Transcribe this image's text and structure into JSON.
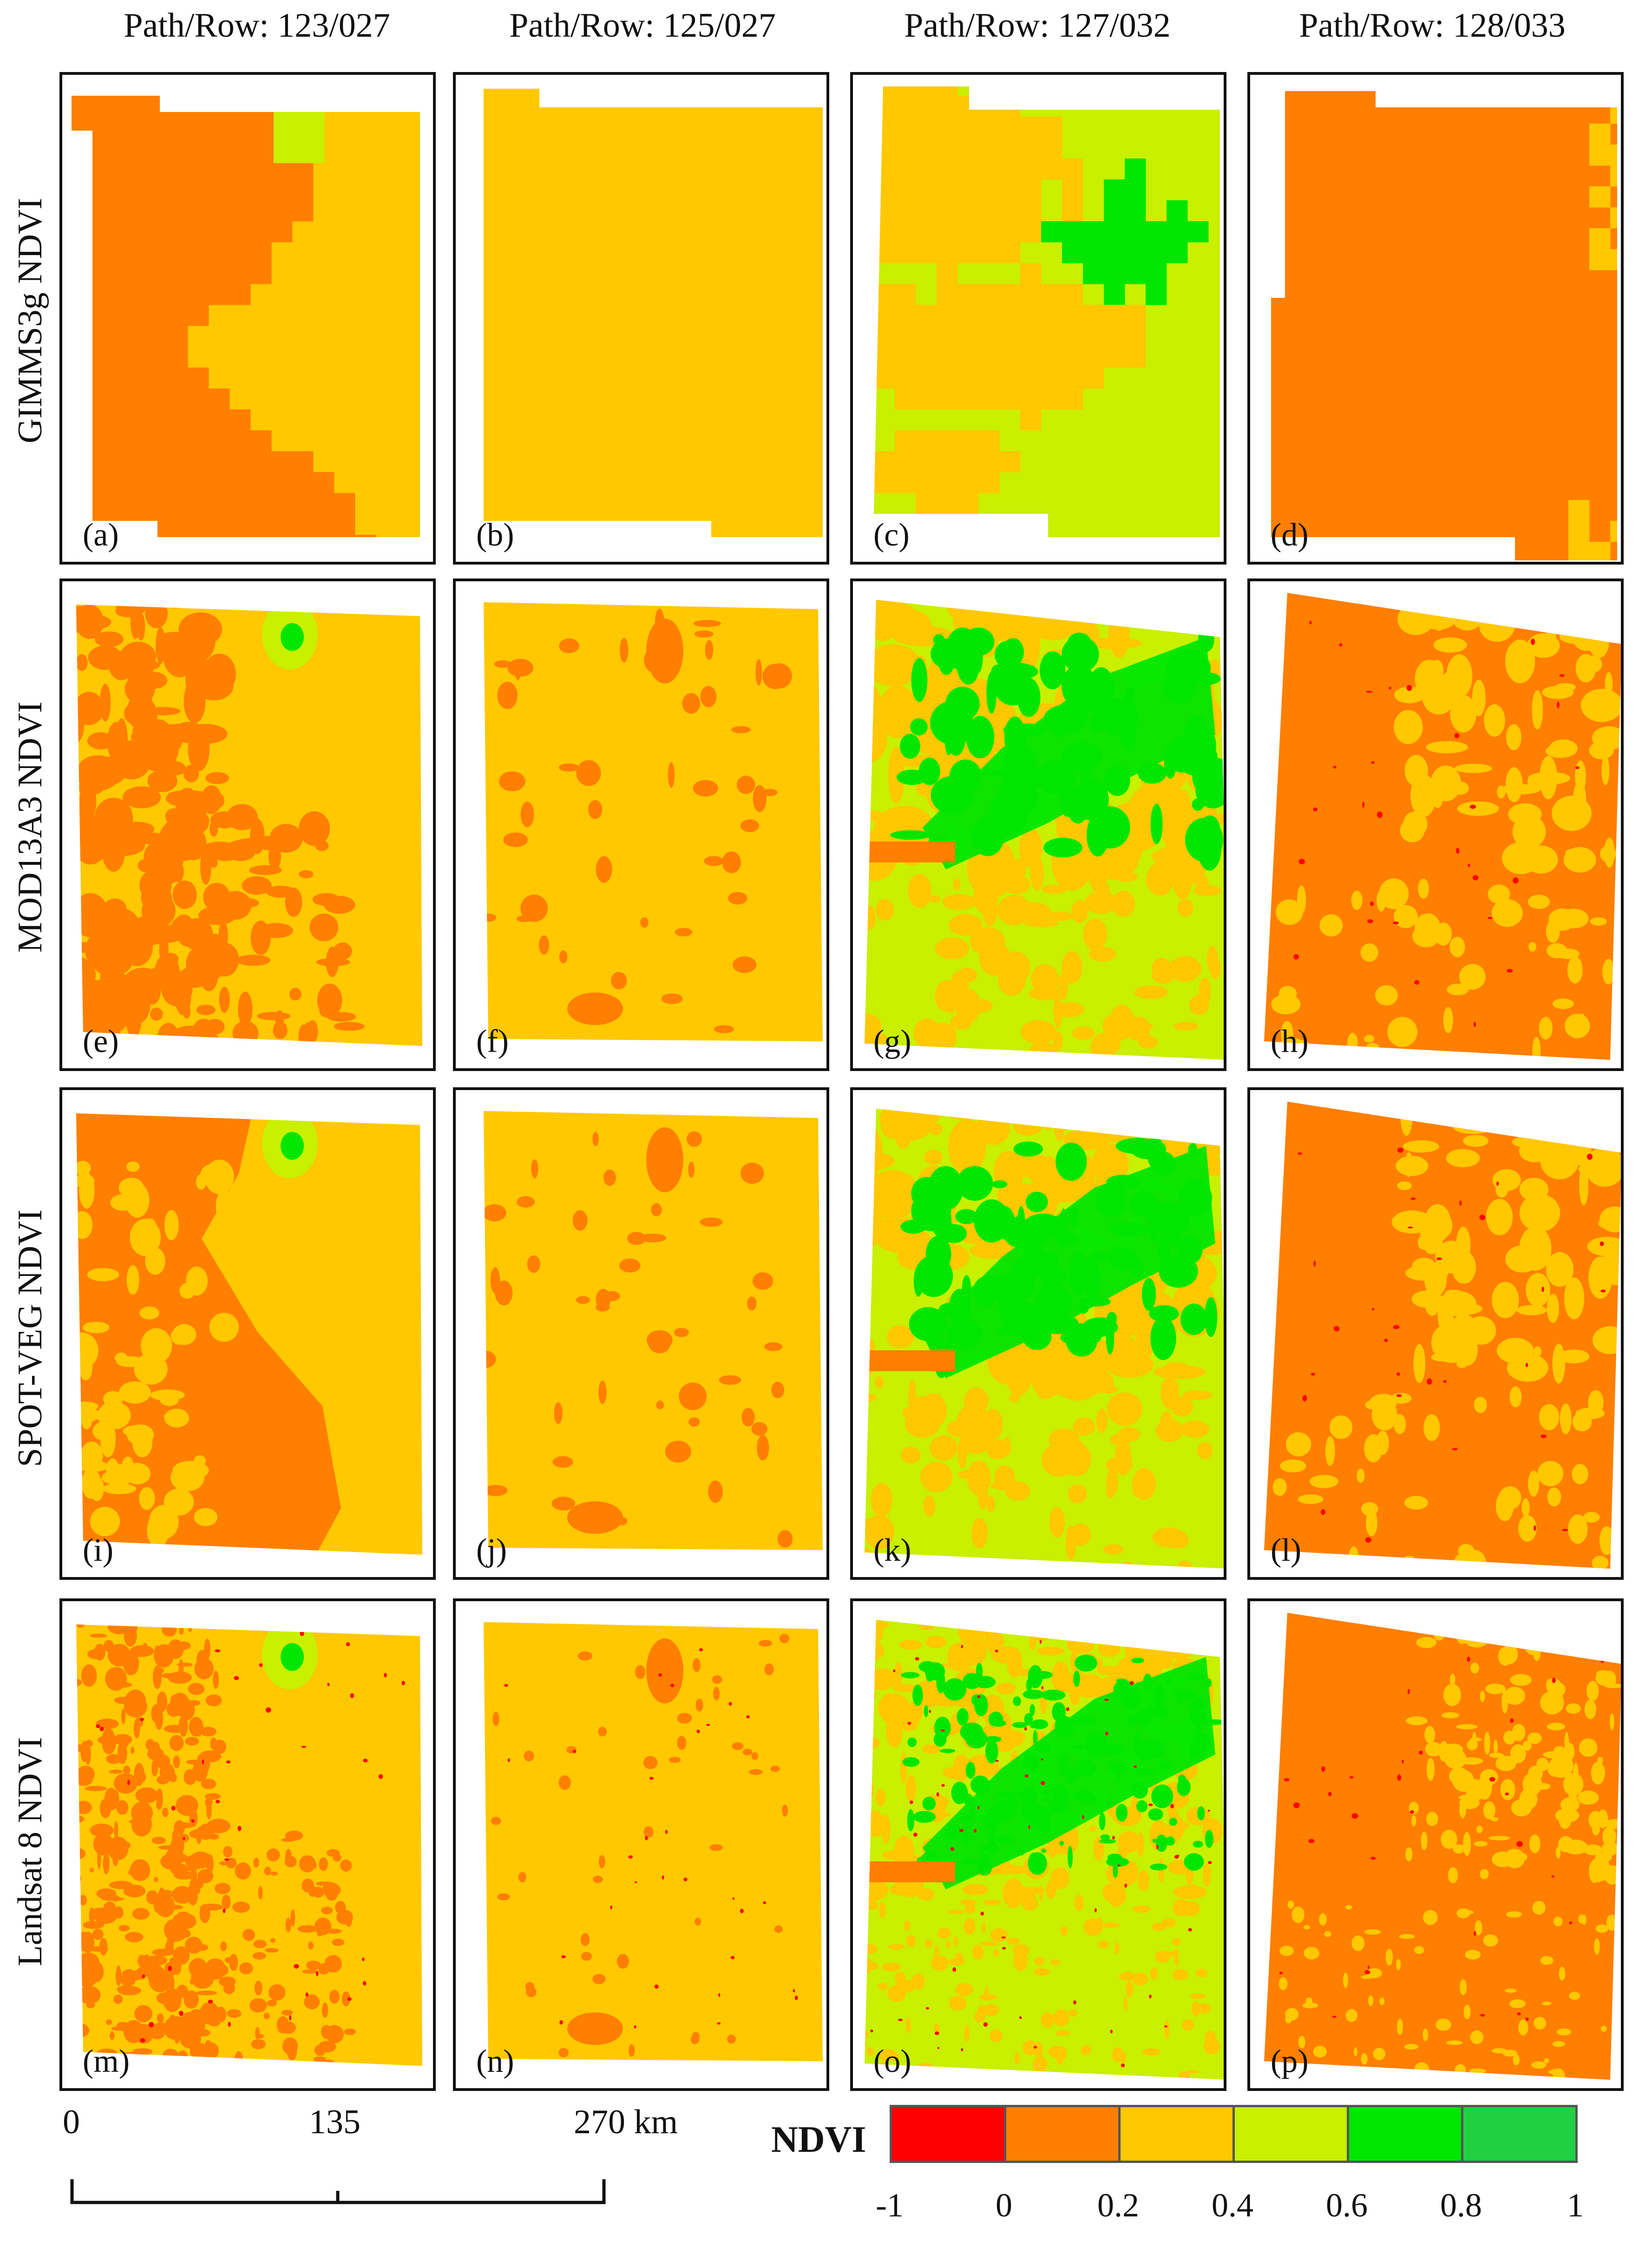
{
  "columns": [
    {
      "title": "Path/Row: 123/027"
    },
    {
      "title": "Path/Row: 125/027"
    },
    {
      "title": "Path/Row: 127/032"
    },
    {
      "title": "Path/Row: 128/033"
    }
  ],
  "rows": [
    {
      "title": "GIMMS3g NDVI"
    },
    {
      "title": "MOD13A3 NDVI"
    },
    {
      "title": "SPOT-VEG NDVI"
    },
    {
      "title": "Landsat 8 NDVI"
    }
  ],
  "panels": [
    {
      "label": "(a)",
      "dataset": "GIMMS3g NDVI",
      "path_row": "123/027"
    },
    {
      "label": "(b)",
      "dataset": "GIMMS3g NDVI",
      "path_row": "125/027"
    },
    {
      "label": "(c)",
      "dataset": "GIMMS3g NDVI",
      "path_row": "127/032"
    },
    {
      "label": "(d)",
      "dataset": "GIMMS3g NDVI",
      "path_row": "128/033"
    },
    {
      "label": "(e)",
      "dataset": "MOD13A3 NDVI",
      "path_row": "123/027"
    },
    {
      "label": "(f)",
      "dataset": "MOD13A3 NDVI",
      "path_row": "125/027"
    },
    {
      "label": "(g)",
      "dataset": "MOD13A3 NDVI",
      "path_row": "127/032"
    },
    {
      "label": "(h)",
      "dataset": "MOD13A3 NDVI",
      "path_row": "128/033"
    },
    {
      "label": "(i)",
      "dataset": "SPOT-VEG NDVI",
      "path_row": "123/027"
    },
    {
      "label": "(j)",
      "dataset": "SPOT-VEG NDVI",
      "path_row": "125/027"
    },
    {
      "label": "(k)",
      "dataset": "SPOT-VEG NDVI",
      "path_row": "127/032"
    },
    {
      "label": "(l)",
      "dataset": "SPOT-VEG NDVI",
      "path_row": "128/033"
    },
    {
      "label": "(m)",
      "dataset": "Landsat 8 NDVI",
      "path_row": "123/027"
    },
    {
      "label": "(n)",
      "dataset": "Landsat 8 NDVI",
      "path_row": "125/027"
    },
    {
      "label": "(o)",
      "dataset": "Landsat 8 NDVI",
      "path_row": "127/032"
    },
    {
      "label": "(p)",
      "dataset": "Landsat 8 NDVI",
      "path_row": "128/033"
    }
  ],
  "scale_bar": {
    "ticks": [
      {
        "value": "0"
      },
      {
        "value": "135"
      },
      {
        "value": "270 km"
      }
    ]
  },
  "legend": {
    "title": "NDVI",
    "classes": [
      {
        "min": -1,
        "max": 0,
        "color": "#FF0000"
      },
      {
        "min": 0,
        "max": 0.2,
        "color": "#FF7F00"
      },
      {
        "min": 0.2,
        "max": 0.4,
        "color": "#FFC800"
      },
      {
        "min": 0.4,
        "max": 0.6,
        "color": "#C8F000"
      },
      {
        "min": 0.6,
        "max": 0.8,
        "color": "#00E600"
      },
      {
        "min": 0.8,
        "max": 1,
        "color": "#20D040"
      }
    ],
    "tick_labels": [
      "-1",
      "0",
      "0.2",
      "0.4",
      "0.6",
      "0.8",
      "1"
    ]
  },
  "colors": {
    "red": "#FF0000",
    "orange": "#FF7F00",
    "yellow": "#FFC800",
    "light_green": "#C8F000",
    "green": "#00E600",
    "frame": "#111111"
  }
}
